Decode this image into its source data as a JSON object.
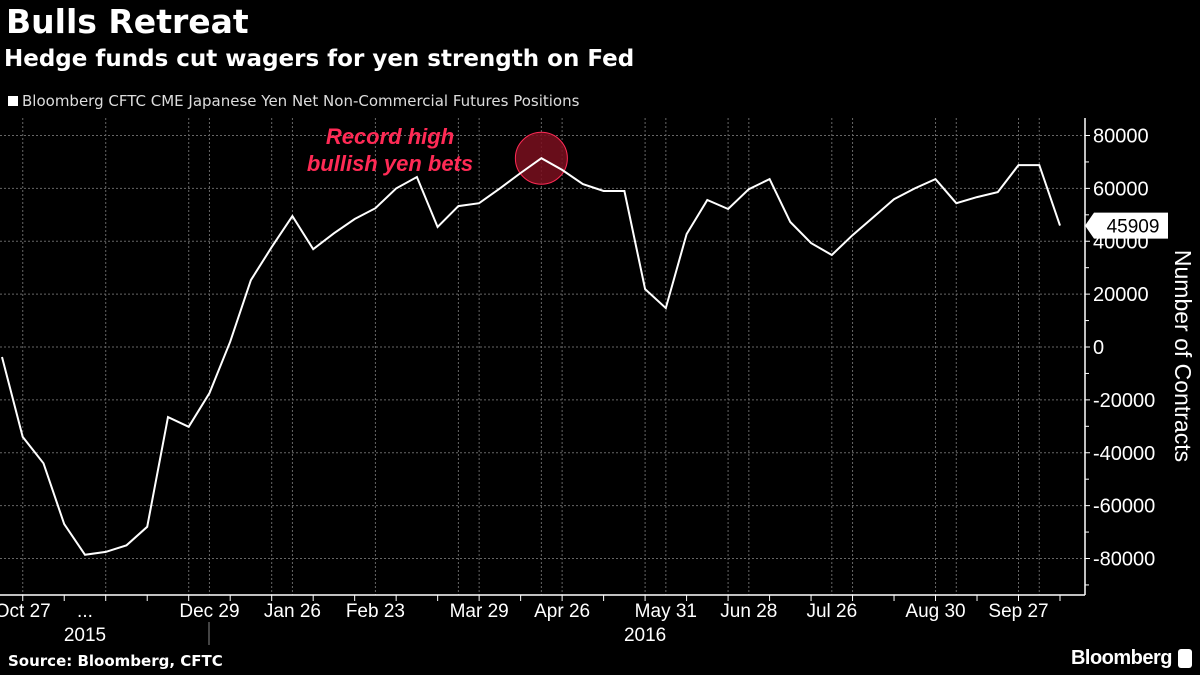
{
  "header": {
    "title": "Bulls Retreat",
    "subtitle": "Hedge funds cut wagers for yen strength on Fed"
  },
  "footer": {
    "source": "Source: Bloomberg, CFTC",
    "logo": "Bloomberg"
  },
  "chart_data": {
    "type": "line",
    "title": "Bulls Retreat",
    "subtitle": "Hedge funds cut wagers for yen strength on Fed",
    "ylabel": "Number of Contracts",
    "xlabel": "",
    "ylim": [
      -93000,
      88000
    ],
    "yticks": [
      80000,
      60000,
      40000,
      20000,
      0,
      -20000,
      -40000,
      -60000,
      -80000
    ],
    "y_axis_side": "right",
    "grid": true,
    "legend_placement": "top-left",
    "colors": {
      "background": "#000000",
      "line": "#ffffff",
      "annotation": "#ff2a55",
      "highlight": "#7a0f1e"
    },
    "series": [
      {
        "name": "Bloomberg CFTC CME Japanese Yen Net Non-Commercial Futures Positions",
        "last_value_label": "45909",
        "x": [
          "2015-10-20",
          "2015-10-27",
          "2015-11-03",
          "2015-11-10",
          "2015-11-17",
          "2015-11-24",
          "2015-12-01",
          "2015-12-08",
          "2015-12-15",
          "2015-12-22",
          "2015-12-29",
          "2016-01-05",
          "2016-01-12",
          "2016-01-19",
          "2016-01-26",
          "2016-02-02",
          "2016-02-09",
          "2016-02-16",
          "2016-02-23",
          "2016-03-01",
          "2016-03-08",
          "2016-03-15",
          "2016-03-22",
          "2016-03-29",
          "2016-04-05",
          "2016-04-12",
          "2016-04-19",
          "2016-04-26",
          "2016-05-03",
          "2016-05-10",
          "2016-05-17",
          "2016-05-24",
          "2016-05-31",
          "2016-06-07",
          "2016-06-14",
          "2016-06-21",
          "2016-06-28",
          "2016-07-05",
          "2016-07-12",
          "2016-07-19",
          "2016-07-26",
          "2016-08-02",
          "2016-08-09",
          "2016-08-16",
          "2016-08-23",
          "2016-08-30",
          "2016-09-06",
          "2016-09-13",
          "2016-09-20",
          "2016-09-27",
          "2016-10-04",
          "2016-10-11"
        ],
        "values": [
          -3800,
          -34000,
          -44000,
          -67000,
          -78600,
          -77500,
          -75000,
          -68000,
          -26500,
          -30200,
          -17400,
          2000,
          25300,
          37800,
          49500,
          37000,
          43000,
          48400,
          52500,
          60000,
          64300,
          45400,
          53300,
          54400,
          60000,
          65800,
          71400,
          67000,
          61600,
          59000,
          59000,
          21900,
          14700,
          42700,
          55600,
          52200,
          59700,
          63500,
          47300,
          39300,
          34800,
          42300,
          49100,
          55900,
          60000,
          63500,
          54400,
          56700,
          58600,
          68800,
          68800,
          45909
        ]
      }
    ],
    "xticks": [
      {
        "label": "Oct 27",
        "date": "2015-10-27"
      },
      {
        "label": "...",
        "date": "2015-11-17"
      },
      {
        "label": "Dec 29",
        "date": "2015-12-29"
      },
      {
        "label": "Jan 26",
        "date": "2016-01-26"
      },
      {
        "label": "Feb 23",
        "date": "2016-02-23"
      },
      {
        "label": "Mar 29",
        "date": "2016-03-29"
      },
      {
        "label": "Apr 26",
        "date": "2016-04-26"
      },
      {
        "label": "May 31",
        "date": "2016-05-31"
      },
      {
        "label": "Jun 28",
        "date": "2016-06-28"
      },
      {
        "label": "Jul 26",
        "date": "2016-07-26"
      },
      {
        "label": "Aug 30",
        "date": "2016-08-30"
      },
      {
        "label": "Sep 27",
        "date": "2016-09-27"
      }
    ],
    "year_labels": [
      {
        "label": "2015",
        "date": "2015-11-17"
      },
      {
        "label": "2016",
        "date": "2016-05-24"
      }
    ],
    "annotation": {
      "lines": [
        "Record high",
        "bullish yen bets"
      ],
      "date": "2016-04-19",
      "value": 71400
    }
  }
}
